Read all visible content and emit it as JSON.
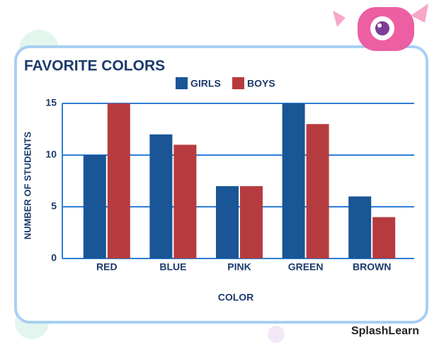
{
  "chart_data": {
    "type": "bar",
    "title": "FAVORITE COLORS",
    "categories": [
      "RED",
      "BLUE",
      "PINK",
      "GREEN",
      "BROWN"
    ],
    "series": [
      {
        "name": "GIRLS",
        "color": "#1a5596",
        "values": [
          10,
          12,
          7,
          15,
          6
        ]
      },
      {
        "name": "BOYS",
        "color": "#b63b3f",
        "values": [
          15,
          11,
          7,
          13,
          4
        ]
      }
    ],
    "x_label": "COLOR",
    "y_label": "NUMBER OF STUDENTS",
    "ylim": [
      0,
      15
    ],
    "yticks": [
      0,
      5,
      10,
      15
    ],
    "grid": true,
    "legend": "top"
  },
  "brand": "SplashLearn"
}
